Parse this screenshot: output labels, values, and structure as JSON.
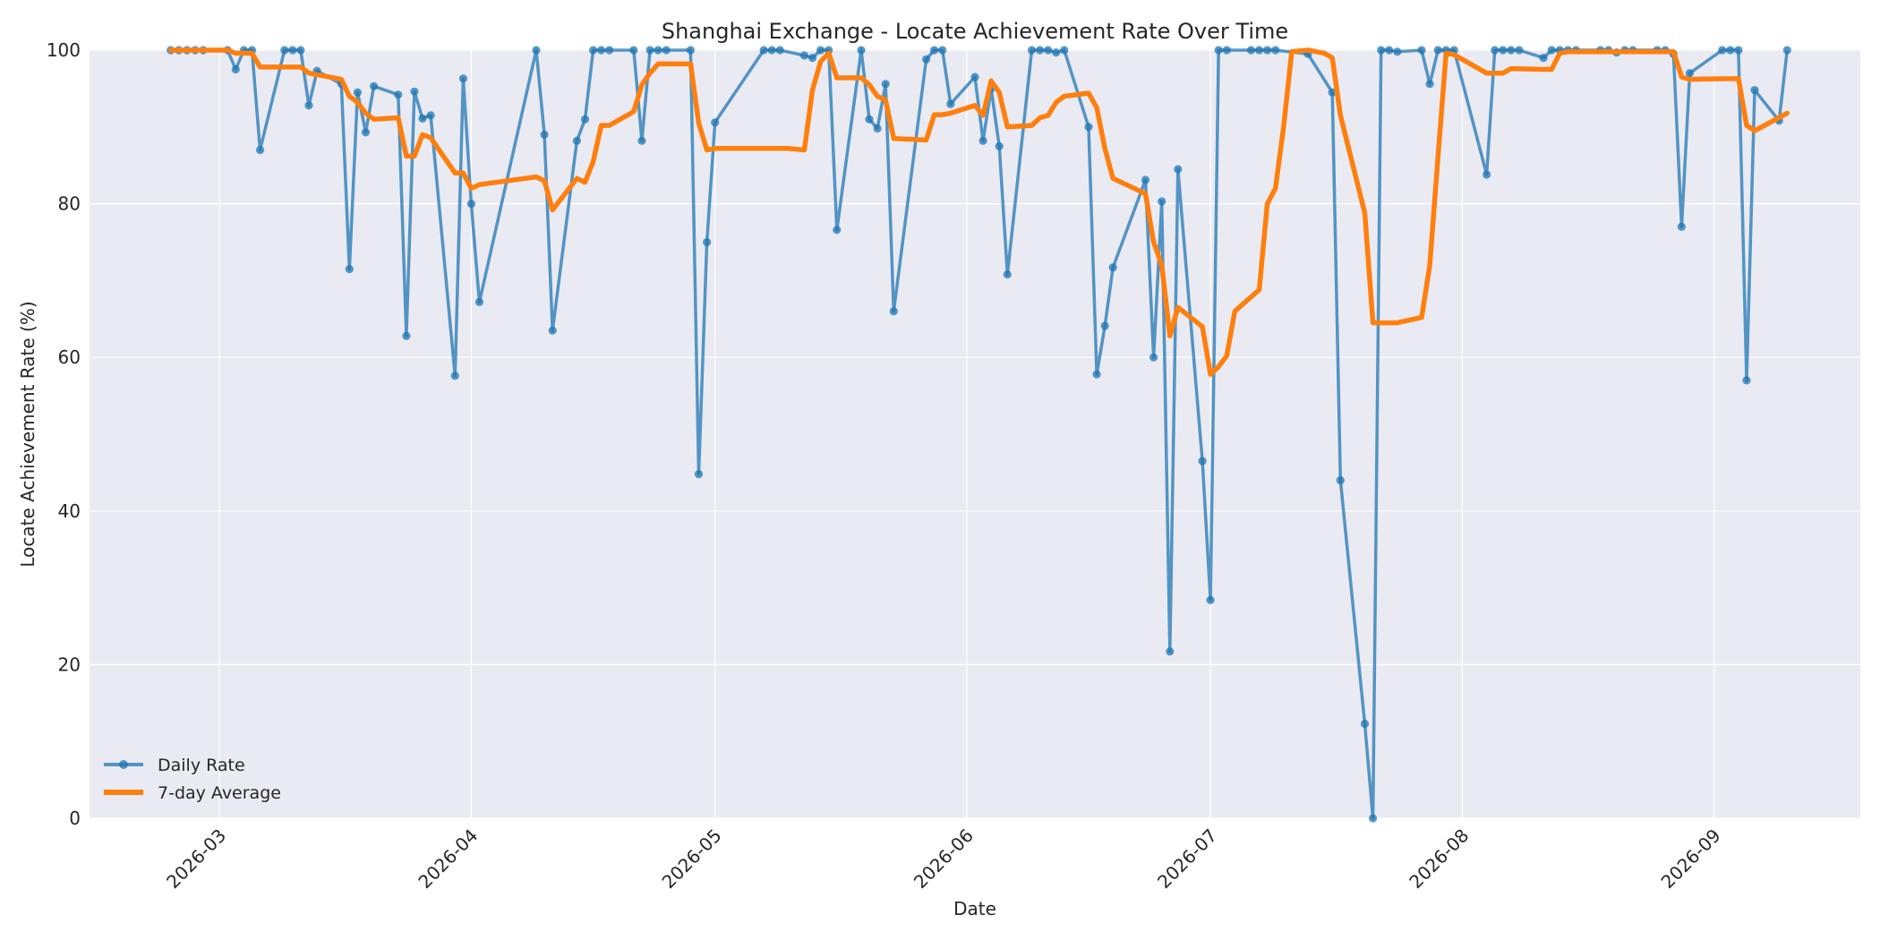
{
  "chart_data": {
    "type": "line",
    "title": "Shanghai Exchange - Locate Achievement Rate Over Time",
    "xlabel": "Date",
    "ylabel": "Locate Achievement Rate (%)",
    "xlim": [
      "2026-02-13",
      "2026-09-19"
    ],
    "ylim": [
      0,
      100
    ],
    "y_ticks": [
      0,
      20,
      40,
      60,
      80,
      100
    ],
    "x_ticks": [
      {
        "date": "2026-03-01",
        "label": "2026-03"
      },
      {
        "date": "2026-04-01",
        "label": "2026-04"
      },
      {
        "date": "2026-05-01",
        "label": "2026-05"
      },
      {
        "date": "2026-06-01",
        "label": "2026-06"
      },
      {
        "date": "2026-07-01",
        "label": "2026-07"
      },
      {
        "date": "2026-08-01",
        "label": "2026-08"
      },
      {
        "date": "2026-09-01",
        "label": "2026-09"
      }
    ],
    "grid": true,
    "legend_position": "lower-left",
    "colors": {
      "daily": "#1f77b4",
      "avg": "#ff7f0e",
      "plot_bg": "#eaeaf2",
      "grid": "#ffffff"
    },
    "series": [
      {
        "name": "Daily Rate",
        "marker": "circle",
        "points": [
          [
            "2026-02-23",
            100.0
          ],
          [
            "2026-02-24",
            100.0
          ],
          [
            "2026-02-25",
            100.0
          ],
          [
            "2026-02-26",
            100.0
          ],
          [
            "2026-02-27",
            100.0
          ],
          [
            "2026-03-02",
            100.0
          ],
          [
            "2026-03-03",
            97.5
          ],
          [
            "2026-03-04",
            100.0
          ],
          [
            "2026-03-05",
            100.0
          ],
          [
            "2026-03-06",
            87.0
          ],
          [
            "2026-03-09",
            100.0
          ],
          [
            "2026-03-10",
            100.0
          ],
          [
            "2026-03-11",
            100.0
          ],
          [
            "2026-03-12",
            92.8
          ],
          [
            "2026-03-13",
            97.3
          ],
          [
            "2026-03-16",
            95.6
          ],
          [
            "2026-03-17",
            71.5
          ],
          [
            "2026-03-18",
            94.5
          ],
          [
            "2026-03-19",
            89.3
          ],
          [
            "2026-03-20",
            95.3
          ],
          [
            "2026-03-23",
            94.2
          ],
          [
            "2026-03-24",
            62.8
          ],
          [
            "2026-03-25",
            94.6
          ],
          [
            "2026-03-26",
            91.1
          ],
          [
            "2026-03-27",
            91.5
          ],
          [
            "2026-03-30",
            57.6
          ],
          [
            "2026-03-31",
            96.3
          ],
          [
            "2026-04-01",
            80.0
          ],
          [
            "2026-04-02",
            67.2
          ],
          [
            "2026-04-09",
            100.0
          ],
          [
            "2026-04-10",
            89.0
          ],
          [
            "2026-04-11",
            63.5
          ],
          [
            "2026-04-14",
            88.2
          ],
          [
            "2026-04-15",
            91.0
          ],
          [
            "2026-04-16",
            100.0
          ],
          [
            "2026-04-17",
            100.0
          ],
          [
            "2026-04-18",
            100.0
          ],
          [
            "2026-04-21",
            100.0
          ],
          [
            "2026-04-22",
            88.2
          ],
          [
            "2026-04-23",
            100.0
          ],
          [
            "2026-04-24",
            100.0
          ],
          [
            "2026-04-25",
            100.0
          ],
          [
            "2026-04-28",
            100.0
          ],
          [
            "2026-04-29",
            44.8
          ],
          [
            "2026-04-30",
            75.0
          ],
          [
            "2026-05-01",
            90.6
          ],
          [
            "2026-05-07",
            100.0
          ],
          [
            "2026-05-08",
            100.0
          ],
          [
            "2026-05-09",
            100.0
          ],
          [
            "2026-05-12",
            99.3
          ],
          [
            "2026-05-13",
            99.0
          ],
          [
            "2026-05-14",
            100.0
          ],
          [
            "2026-05-15",
            100.0
          ],
          [
            "2026-05-16",
            76.6
          ],
          [
            "2026-05-19",
            100.0
          ],
          [
            "2026-05-20",
            91.0
          ],
          [
            "2026-05-21",
            89.8
          ],
          [
            "2026-05-22",
            95.6
          ],
          [
            "2026-05-23",
            66.0
          ],
          [
            "2026-05-27",
            98.8
          ],
          [
            "2026-05-28",
            100.0
          ],
          [
            "2026-05-29",
            100.0
          ],
          [
            "2026-05-30",
            93.0
          ],
          [
            "2026-06-02",
            96.5
          ],
          [
            "2026-06-03",
            88.2
          ],
          [
            "2026-06-04",
            95.0
          ],
          [
            "2026-06-05",
            87.5
          ],
          [
            "2026-06-06",
            70.8
          ],
          [
            "2026-06-09",
            100.0
          ],
          [
            "2026-06-10",
            100.0
          ],
          [
            "2026-06-11",
            100.0
          ],
          [
            "2026-06-12",
            99.7
          ],
          [
            "2026-06-13",
            100.0
          ],
          [
            "2026-06-16",
            90.0
          ],
          [
            "2026-06-17",
            57.8
          ],
          [
            "2026-06-18",
            64.1
          ],
          [
            "2026-06-19",
            71.7
          ],
          [
            "2026-06-23",
            83.1
          ],
          [
            "2026-06-24",
            60.0
          ],
          [
            "2026-06-25",
            80.3
          ],
          [
            "2026-06-26",
            21.7
          ],
          [
            "2026-06-27",
            84.5
          ],
          [
            "2026-06-30",
            46.5
          ],
          [
            "2026-07-01",
            28.4
          ],
          [
            "2026-07-02",
            100.0
          ],
          [
            "2026-07-03",
            100.0
          ],
          [
            "2026-07-06",
            100.0
          ],
          [
            "2026-07-07",
            100.0
          ],
          [
            "2026-07-08",
            100.0
          ],
          [
            "2026-07-09",
            100.0
          ],
          [
            "2026-07-13",
            99.5
          ],
          [
            "2026-07-16",
            94.5
          ],
          [
            "2026-07-17",
            44.0
          ],
          [
            "2026-07-20",
            12.3
          ],
          [
            "2026-07-21",
            0.0
          ],
          [
            "2026-07-22",
            100.0
          ],
          [
            "2026-07-23",
            100.0
          ],
          [
            "2026-07-24",
            99.8
          ],
          [
            "2026-07-27",
            100.0
          ],
          [
            "2026-07-28",
            95.6
          ],
          [
            "2026-07-29",
            100.0
          ],
          [
            "2026-07-30",
            100.0
          ],
          [
            "2026-07-31",
            100.0
          ],
          [
            "2026-08-04",
            83.8
          ],
          [
            "2026-08-05",
            100.0
          ],
          [
            "2026-08-06",
            100.0
          ],
          [
            "2026-08-07",
            100.0
          ],
          [
            "2026-08-08",
            100.0
          ],
          [
            "2026-08-11",
            99.0
          ],
          [
            "2026-08-12",
            100.0
          ],
          [
            "2026-08-13",
            100.0
          ],
          [
            "2026-08-14",
            100.0
          ],
          [
            "2026-08-15",
            100.0
          ],
          [
            "2026-08-18",
            100.0
          ],
          [
            "2026-08-19",
            100.0
          ],
          [
            "2026-08-20",
            99.7
          ],
          [
            "2026-08-21",
            100.0
          ],
          [
            "2026-08-22",
            100.0
          ],
          [
            "2026-08-25",
            100.0
          ],
          [
            "2026-08-26",
            100.0
          ],
          [
            "2026-08-27",
            99.5
          ],
          [
            "2026-08-28",
            77.0
          ],
          [
            "2026-08-29",
            97.0
          ],
          [
            "2026-09-02",
            100.0
          ],
          [
            "2026-09-03",
            100.0
          ],
          [
            "2026-09-04",
            100.0
          ],
          [
            "2026-09-05",
            57.0
          ],
          [
            "2026-09-06",
            94.8
          ],
          [
            "2026-09-09",
            90.8
          ],
          [
            "2026-09-10",
            100.0
          ]
        ]
      },
      {
        "name": "7-day Average",
        "marker": "none",
        "points": [
          [
            "2026-02-23",
            100.0
          ],
          [
            "2026-02-27",
            100.0
          ],
          [
            "2026-03-02",
            100.0
          ],
          [
            "2026-03-03",
            99.6
          ],
          [
            "2026-03-04",
            99.6
          ],
          [
            "2026-03-05",
            99.6
          ],
          [
            "2026-03-06",
            97.8
          ],
          [
            "2026-03-10",
            97.8
          ],
          [
            "2026-03-11",
            97.8
          ],
          [
            "2026-03-12",
            97.0
          ],
          [
            "2026-03-16",
            96.2
          ],
          [
            "2026-03-17",
            94.0
          ],
          [
            "2026-03-18",
            93.2
          ],
          [
            "2026-03-19",
            91.8
          ],
          [
            "2026-03-20",
            91.0
          ],
          [
            "2026-03-23",
            91.2
          ],
          [
            "2026-03-24",
            86.2
          ],
          [
            "2026-03-25",
            86.2
          ],
          [
            "2026-03-26",
            89.0
          ],
          [
            "2026-03-27",
            88.6
          ],
          [
            "2026-03-30",
            84.0
          ],
          [
            "2026-03-31",
            84.0
          ],
          [
            "2026-04-01",
            82.0
          ],
          [
            "2026-04-02",
            82.5
          ],
          [
            "2026-04-09",
            83.5
          ],
          [
            "2026-04-10",
            83.0
          ],
          [
            "2026-04-11",
            79.2
          ],
          [
            "2026-04-14",
            83.3
          ],
          [
            "2026-04-15",
            82.8
          ],
          [
            "2026-04-16",
            85.5
          ],
          [
            "2026-04-17",
            90.2
          ],
          [
            "2026-04-18",
            90.2
          ],
          [
            "2026-04-21",
            92.0
          ],
          [
            "2026-04-22",
            95.5
          ],
          [
            "2026-04-23",
            97.0
          ],
          [
            "2026-04-24",
            98.2
          ],
          [
            "2026-04-28",
            98.2
          ],
          [
            "2026-04-29",
            90.5
          ],
          [
            "2026-04-30",
            87.0
          ],
          [
            "2026-05-01",
            87.2
          ],
          [
            "2026-05-10",
            87.2
          ],
          [
            "2026-05-12",
            87.0
          ],
          [
            "2026-05-13",
            94.8
          ],
          [
            "2026-05-14",
            98.5
          ],
          [
            "2026-05-15",
            99.6
          ],
          [
            "2026-05-16",
            96.4
          ],
          [
            "2026-05-19",
            96.4
          ],
          [
            "2026-05-20",
            95.5
          ],
          [
            "2026-05-21",
            94.0
          ],
          [
            "2026-05-22",
            93.5
          ],
          [
            "2026-05-23",
            88.5
          ],
          [
            "2026-05-27",
            88.3
          ],
          [
            "2026-05-28",
            91.6
          ],
          [
            "2026-05-29",
            91.6
          ],
          [
            "2026-05-30",
            91.8
          ],
          [
            "2026-06-02",
            92.8
          ],
          [
            "2026-06-03",
            91.5
          ],
          [
            "2026-06-04",
            96.0
          ],
          [
            "2026-06-05",
            94.5
          ],
          [
            "2026-06-06",
            90.0
          ],
          [
            "2026-06-09",
            90.2
          ],
          [
            "2026-06-10",
            91.2
          ],
          [
            "2026-06-11",
            91.5
          ],
          [
            "2026-06-12",
            93.2
          ],
          [
            "2026-06-13",
            94.0
          ],
          [
            "2026-06-16",
            94.4
          ],
          [
            "2026-06-17",
            92.5
          ],
          [
            "2026-06-18",
            87.2
          ],
          [
            "2026-06-19",
            83.3
          ],
          [
            "2026-06-23",
            81.3
          ],
          [
            "2026-06-24",
            75.0
          ],
          [
            "2026-06-25",
            72.0
          ],
          [
            "2026-06-26",
            62.8
          ],
          [
            "2026-06-27",
            66.5
          ],
          [
            "2026-06-30",
            64.0
          ],
          [
            "2026-07-01",
            57.8
          ],
          [
            "2026-07-02",
            58.8
          ],
          [
            "2026-07-03",
            60.2
          ],
          [
            "2026-07-04",
            66.0
          ],
          [
            "2026-07-07",
            68.8
          ],
          [
            "2026-07-08",
            80.0
          ],
          [
            "2026-07-09",
            82.0
          ],
          [
            "2026-07-10",
            90.0
          ],
          [
            "2026-07-11",
            99.8
          ],
          [
            "2026-07-13",
            100.0
          ],
          [
            "2026-07-15",
            99.6
          ],
          [
            "2026-07-16",
            99.0
          ],
          [
            "2026-07-17",
            91.5
          ],
          [
            "2026-07-20",
            78.8
          ],
          [
            "2026-07-21",
            64.5
          ],
          [
            "2026-07-23",
            64.5
          ],
          [
            "2026-07-24",
            64.5
          ],
          [
            "2026-07-27",
            65.2
          ],
          [
            "2026-07-28",
            72.0
          ],
          [
            "2026-07-29",
            86.0
          ],
          [
            "2026-07-30",
            99.6
          ],
          [
            "2026-07-31",
            99.4
          ],
          [
            "2026-08-04",
            97.0
          ],
          [
            "2026-08-05",
            97.0
          ],
          [
            "2026-08-06",
            97.0
          ],
          [
            "2026-08-07",
            97.6
          ],
          [
            "2026-08-11",
            97.5
          ],
          [
            "2026-08-12",
            97.5
          ],
          [
            "2026-08-13",
            99.6
          ],
          [
            "2026-08-14",
            99.8
          ],
          [
            "2026-08-18",
            99.8
          ],
          [
            "2026-08-19",
            99.8
          ],
          [
            "2026-08-27",
            99.8
          ],
          [
            "2026-08-28",
            96.5
          ],
          [
            "2026-08-29",
            96.2
          ],
          [
            "2026-09-04",
            96.3
          ],
          [
            "2026-09-05",
            90.2
          ],
          [
            "2026-09-06",
            89.5
          ],
          [
            "2026-09-10",
            91.8
          ]
        ]
      }
    ]
  }
}
